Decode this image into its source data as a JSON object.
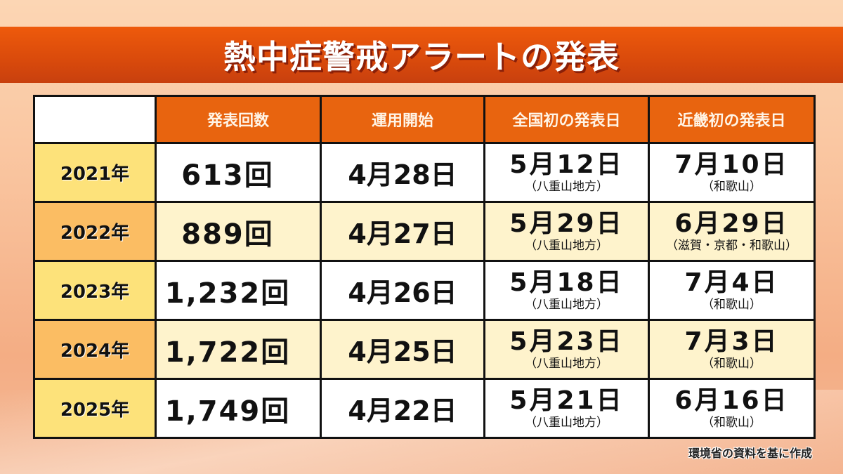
{
  "title": "熱中症警戒アラートの発表",
  "table": {
    "headers": [
      "",
      "発表回数",
      "運用開始",
      "全国初の発表日",
      "近畿初の発表日"
    ],
    "rows": [
      {
        "year": "2021年",
        "count": "613回",
        "start": "4月28日",
        "first_date": "5月12日",
        "first_area": "（八重山地方）",
        "kinki_date": "7月10日",
        "kinki_area": "（和歌山）"
      },
      {
        "year": "2022年",
        "count": "889回",
        "start": "4月27日",
        "first_date": "5月29日",
        "first_area": "（八重山地方）",
        "kinki_date": "6月29日",
        "kinki_area": "（滋賀・京都・和歌山）"
      },
      {
        "year": "2023年",
        "count": "1,232回",
        "start": "4月26日",
        "first_date": "5月18日",
        "first_area": "（八重山地方）",
        "kinki_date": "7月4日",
        "kinki_area": "（和歌山）"
      },
      {
        "year": "2024年",
        "count": "1,722回",
        "start": "4月25日",
        "first_date": "5月23日",
        "first_area": "（八重山地方）",
        "kinki_date": "7月3日",
        "kinki_area": "（和歌山）"
      },
      {
        "year": "2025年",
        "count": "1,749回",
        "start": "4月22日",
        "first_date": "5月21日",
        "first_area": "（八重山地方）",
        "kinki_date": "6月16日",
        "kinki_area": "（和歌山）"
      }
    ]
  },
  "source": "環境省の資料を基に作成",
  "colors": {
    "title_band": "#e0520c",
    "header": "#e8640f",
    "year_light": "#fde27a",
    "year_dark": "#fbbd63",
    "row_alt": "#fef3cc"
  }
}
